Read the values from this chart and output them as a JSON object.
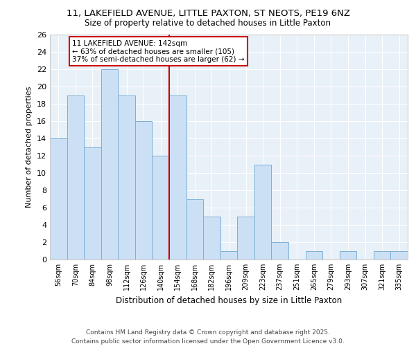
{
  "title_line1": "11, LAKEFIELD AVENUE, LITTLE PAXTON, ST NEOTS, PE19 6NZ",
  "title_line2": "Size of property relative to detached houses in Little Paxton",
  "xlabel": "Distribution of detached houses by size in Little Paxton",
  "ylabel": "Number of detached properties",
  "footer": "Contains HM Land Registry data © Crown copyright and database right 2025.\nContains public sector information licensed under the Open Government Licence v3.0.",
  "bin_labels": [
    "56sqm",
    "70sqm",
    "84sqm",
    "98sqm",
    "112sqm",
    "126sqm",
    "140sqm",
    "154sqm",
    "168sqm",
    "182sqm",
    "196sqm",
    "209sqm",
    "223sqm",
    "237sqm",
    "251sqm",
    "265sqm",
    "279sqm",
    "293sqm",
    "307sqm",
    "321sqm",
    "335sqm"
  ],
  "bar_values": [
    14,
    19,
    13,
    22,
    19,
    16,
    12,
    19,
    7,
    5,
    1,
    5,
    11,
    2,
    0,
    1,
    0,
    1,
    0,
    1,
    1
  ],
  "bar_color": "#cce0f5",
  "bar_edge_color": "#7bafd4",
  "vline_x_index": 6,
  "vline_color": "#cc0000",
  "annotation_title": "11 LAKEFIELD AVENUE: 142sqm",
  "annotation_line2": "← 63% of detached houses are smaller (105)",
  "annotation_line3": "37% of semi-detached houses are larger (62) →",
  "annotation_box_color": "#ffffff",
  "annotation_box_edge": "#cc0000",
  "ylim": [
    0,
    26
  ],
  "yticks": [
    0,
    2,
    4,
    6,
    8,
    10,
    12,
    14,
    16,
    18,
    20,
    22,
    24,
    26
  ],
  "fig_background_color": "#ffffff",
  "plot_background_color": "#e8f0f8",
  "grid_color": "#ffffff"
}
